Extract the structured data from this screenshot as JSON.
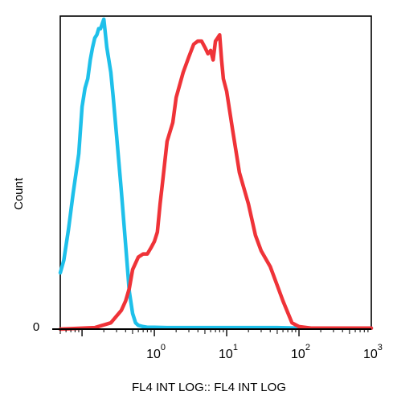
{
  "chart_data": {
    "type": "line",
    "title": "",
    "xlabel": "FL4 INT LOG:: FL4 INT LOG",
    "ylabel": "Count",
    "x_scale": "log",
    "xlim": [
      0.05,
      1000
    ],
    "ylim": [
      0,
      100
    ],
    "y_ticks": [
      {
        "value": 0,
        "label": "0"
      }
    ],
    "x_ticks": [
      {
        "value": 1,
        "base": "10",
        "exp": "0"
      },
      {
        "value": 10,
        "base": "10",
        "exp": "1"
      },
      {
        "value": 100,
        "base": "10",
        "exp": "2"
      },
      {
        "value": 1000,
        "base": "10",
        "exp": "3"
      }
    ],
    "grid": false,
    "legend": "none",
    "series": [
      {
        "color": "#1ec0ea",
        "x": [
          0.05,
          0.056,
          0.065,
          0.075,
          0.09,
          0.1,
          0.11,
          0.12,
          0.13,
          0.14,
          0.15,
          0.16,
          0.17,
          0.18,
          0.2,
          0.22,
          0.25,
          0.27,
          0.3,
          0.35,
          0.4,
          0.45,
          0.5,
          0.55,
          0.6,
          0.7,
          0.8,
          1.0,
          1.5,
          2,
          5,
          10,
          20,
          50,
          100,
          200,
          500,
          1000
        ],
        "y": [
          18,
          22,
          32,
          43,
          56,
          71,
          77,
          80,
          86,
          90,
          93,
          94,
          96,
          96,
          99,
          90,
          82,
          74,
          62,
          44,
          27,
          12,
          5,
          2,
          1.2,
          0.8,
          0.6,
          0.6,
          0.5,
          0.5,
          0.5,
          0.5,
          0.5,
          0.5,
          0.3,
          0.3,
          0.3,
          0.3
        ]
      },
      {
        "color": "#ef3338",
        "x": [
          0.05,
          0.15,
          0.25,
          0.35,
          0.4,
          0.45,
          0.5,
          0.6,
          0.7,
          0.8,
          0.9,
          1.0,
          1.1,
          1.2,
          1.3,
          1.5,
          1.8,
          2.0,
          2.5,
          3,
          3.5,
          4,
          4.5,
          5,
          5.5,
          6,
          6.5,
          7,
          7.5,
          8,
          8.5,
          9,
          10,
          12,
          15,
          20,
          25,
          30,
          40,
          50,
          60,
          80,
          100,
          150,
          300,
          1000
        ],
        "y": [
          0,
          0.5,
          2,
          6,
          9,
          13,
          19,
          23,
          24,
          24,
          26,
          28,
          31,
          40,
          47,
          60,
          66,
          74,
          82,
          87,
          91,
          92,
          92,
          90,
          88,
          89,
          86,
          92,
          93,
          94,
          86,
          80,
          76,
          64,
          50,
          40,
          30,
          25,
          20,
          14,
          9,
          2,
          0.8,
          0.3,
          0.3,
          0.3
        ]
      }
    ]
  }
}
